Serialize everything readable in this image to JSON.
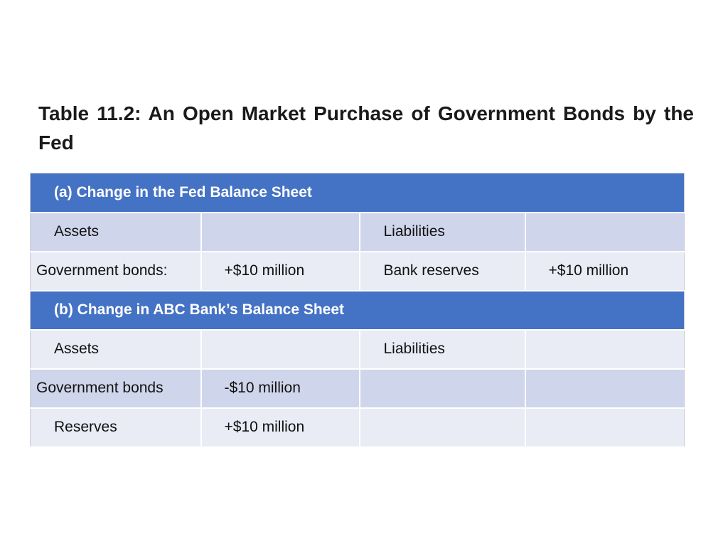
{
  "title": "Table 11.2: An Open Market Purchase of Government Bonds by the Fed",
  "table": {
    "section_a": {
      "header": "(a) Change in the Fed Balance Sheet",
      "rows": [
        [
          "Assets",
          "",
          "Liabilities",
          ""
        ],
        [
          "Government bonds:",
          "+$10 million",
          "Bank reserves",
          "+$10 million"
        ]
      ]
    },
    "section_b": {
      "header": "(b) Change in ABC Bank’s Balance Sheet",
      "rows": [
        [
          "Assets",
          "",
          "Liabilities",
          ""
        ],
        [
          "Government bonds",
          "-$10 million",
          "",
          ""
        ],
        [
          "Reserves",
          "+$10 million",
          "",
          ""
        ]
      ]
    }
  },
  "colors": {
    "header_bg": "#4472c4",
    "row_dark": "#cfd5ea",
    "row_light": "#e9ebf5"
  }
}
